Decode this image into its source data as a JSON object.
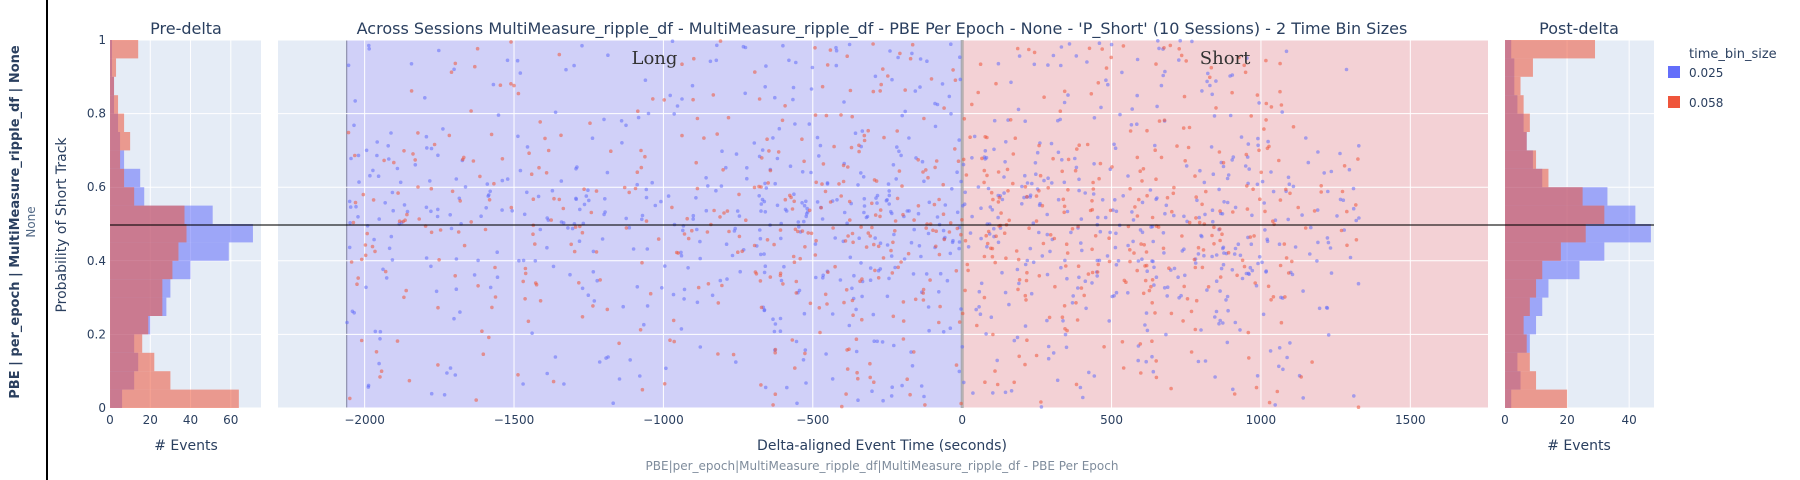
{
  "main_title": "Across Sessions MultiMeasure_ripple_df - MultiMeasure_ripple_df - PBE Per Epoch - None - 'P_Short' (10 Sessions) - 2 Time Bin Sizes",
  "left_title": "Pre-delta",
  "right_title": "Post-delta",
  "side_label_bold": "PBE | per_epoch | MultiMeasure_ripple_df | None",
  "side_label_sub": "None",
  "ylabel": "Probability of Short Track",
  "xlabel": "Delta-aligned Event Time (seconds)",
  "hist_xlabel": "# Events",
  "footer": "PBE|per_epoch|MultiMeasure_ripple_df|MultiMeasure_ripple_df - PBE Per Epoch",
  "region_long_label": "Long",
  "region_short_label": "Short",
  "legend": {
    "title": "time_bin_size",
    "items": [
      {
        "label": "0.025",
        "color": "#636efa"
      },
      {
        "label": "0.058",
        "color": "#ef553b"
      }
    ]
  },
  "colors": {
    "plot_bg": "#e5ecf6",
    "long_region": "#d0d0f8",
    "short_region": "#f3d1d5",
    "series_a": "#636efa",
    "series_b": "#ef553b"
  },
  "chart_data": [
    {
      "type": "scatter",
      "title": "Across Sessions MultiMeasure_ripple_df - MultiMeasure_ripple_df - PBE Per Epoch - None - 'P_Short' (10 Sessions) - 2 Time Bin Sizes",
      "xlabel": "Delta-aligned Event Time (seconds)",
      "ylabel": "Probability of Short Track",
      "xlim": [
        -2290,
        1760
      ],
      "ylim": [
        0,
        1
      ],
      "xticks": [
        -2000,
        -1500,
        -1000,
        -500,
        0,
        500,
        1000,
        1500
      ],
      "yticks": [
        0,
        0.2,
        0.4,
        0.6,
        0.8,
        1
      ],
      "ytick_labels": [
        "0",
        "0.2",
        "0.4",
        "0.6",
        "0.8",
        "1"
      ],
      "regions": [
        {
          "label": "Long",
          "x": [
            -2060,
            0
          ]
        },
        {
          "label": "Short",
          "x": [
            0,
            1760
          ]
        }
      ],
      "hline_y": 0.5,
      "vline_x": 0,
      "series": [
        {
          "name": "0.025",
          "x_range": [
            -2060,
            1330
          ],
          "y_range": [
            0,
            1
          ],
          "n_points": 900
        },
        {
          "name": "0.058",
          "x_range": [
            -2060,
            1330
          ],
          "y_range": [
            0,
            1
          ],
          "n_points": 700
        }
      ]
    },
    {
      "type": "bar",
      "title": "Pre-delta",
      "orientation": "horizontal",
      "xlabel": "# Events",
      "xlim": [
        0,
        75
      ],
      "xticks": [
        0,
        20,
        40,
        60
      ],
      "ylim": [
        0,
        1
      ],
      "bin_edges": [
        0,
        0.05,
        0.1,
        0.15,
        0.2,
        0.25,
        0.3,
        0.35,
        0.4,
        0.45,
        0.5,
        0.55,
        0.6,
        0.65,
        0.7,
        0.75,
        0.8,
        0.85,
        0.9,
        0.95,
        1
      ],
      "series": [
        {
          "name": "0.025",
          "values": [
            6,
            12,
            14,
            12,
            20,
            28,
            30,
            40,
            59,
            71,
            51,
            17,
            15,
            7,
            5,
            4,
            2,
            2,
            1,
            1
          ]
        },
        {
          "name": "0.058",
          "values": [
            64,
            30,
            22,
            16,
            19,
            26,
            26,
            31,
            34,
            38,
            37,
            12,
            7,
            5,
            10,
            7,
            4,
            2,
            3,
            14
          ]
        }
      ]
    },
    {
      "type": "bar",
      "title": "Post-delta",
      "orientation": "horizontal",
      "xlabel": "# Events",
      "xlim": [
        0,
        48
      ],
      "xticks": [
        0,
        20,
        40
      ],
      "ylim": [
        0,
        1
      ],
      "bin_edges": [
        0,
        0.05,
        0.1,
        0.15,
        0.2,
        0.25,
        0.3,
        0.35,
        0.4,
        0.45,
        0.5,
        0.55,
        0.6,
        0.65,
        0.7,
        0.75,
        0.8,
        0.85,
        0.9,
        0.95,
        1
      ],
      "series": [
        {
          "name": "0.025",
          "values": [
            2,
            5,
            4,
            8,
            10,
            12,
            14,
            24,
            32,
            47,
            42,
            33,
            12,
            9,
            7,
            6,
            4,
            3,
            3,
            2
          ]
        },
        {
          "name": "0.058",
          "values": [
            20,
            10,
            8,
            7,
            6,
            8,
            10,
            12,
            18,
            26,
            32,
            25,
            14,
            10,
            7,
            8,
            6,
            5,
            9,
            29
          ]
        }
      ]
    }
  ]
}
